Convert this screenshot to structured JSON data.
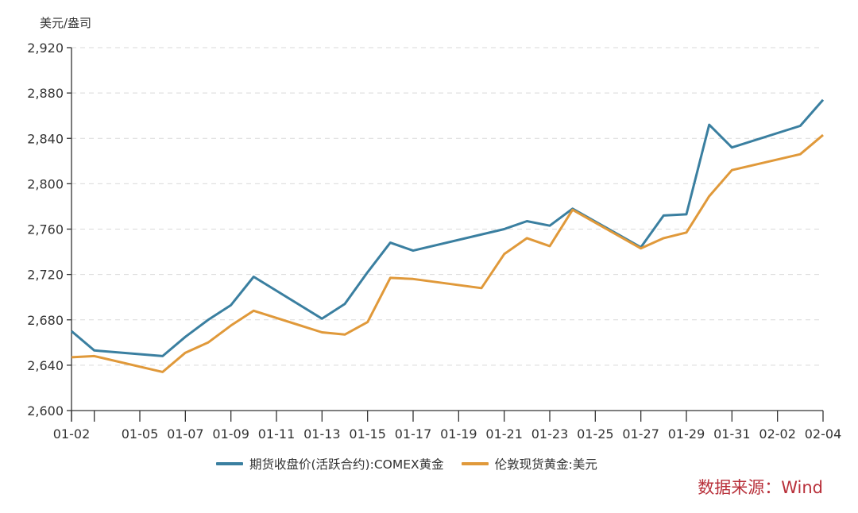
{
  "unit_label": "美元/盎司",
  "source_label": "数据来源：Wind",
  "colors": {
    "series1": "#3a7fa0",
    "series2": "#e0993a",
    "source": "#b8303a",
    "axis": "#333333",
    "grid": "#d9d9d9"
  },
  "legend": [
    {
      "label": "期货收盘价(活跃合约):COMEX黄金",
      "color": "#3a7fa0"
    },
    {
      "label": "伦敦现货黄金:美元",
      "color": "#e0993a"
    }
  ],
  "chart_data": {
    "type": "line",
    "title": "",
    "xlabel": "",
    "ylabel": "美元/盎司",
    "ylim": [
      2600,
      2920
    ],
    "yticks": [
      2600,
      2640,
      2680,
      2720,
      2760,
      2800,
      2840,
      2880,
      2920
    ],
    "ytick_labels": [
      "2,600",
      "2,640",
      "2,680",
      "2,720",
      "2,760",
      "2,800",
      "2,840",
      "2,880",
      "2,920"
    ],
    "xrange": [
      "01-02",
      "02-04"
    ],
    "xticks": [
      "01-02",
      "01-03",
      "01-05",
      "01-07",
      "01-09",
      "01-11",
      "01-13",
      "01-15",
      "01-17",
      "01-19",
      "01-21",
      "01-23",
      "01-25",
      "01-27",
      "01-29",
      "01-31",
      "02-02",
      "02-04"
    ],
    "xtick_labels": [
      "01-02",
      "",
      "01-05",
      "01-07",
      "01-09",
      "01-11",
      "01-13",
      "01-15",
      "01-17",
      "01-19",
      "01-21",
      "01-23",
      "01-25",
      "01-27",
      "01-29",
      "01-31",
      "02-02",
      "02-04"
    ],
    "grid": "horizontal dashed",
    "legend_position": "bottom",
    "series": [
      {
        "name": "期货收盘价(活跃合约):COMEX黄金",
        "color": "#3a7fa0",
        "x": [
          "01-02",
          "01-03",
          "01-06",
          "01-07",
          "01-08",
          "01-09",
          "01-10",
          "01-13",
          "01-14",
          "01-15",
          "01-16",
          "01-17",
          "01-21",
          "01-22",
          "01-23",
          "01-24",
          "01-27",
          "01-28",
          "01-29",
          "01-30",
          "01-31",
          "02-03",
          "02-04"
        ],
        "values": [
          2670,
          2653,
          2648,
          2665,
          2680,
          2693,
          2718,
          2681,
          2694,
          2722,
          2748,
          2741,
          2760,
          2767,
          2763,
          2778,
          2744,
          2772,
          2773,
          2852,
          2832,
          2851,
          2874
        ]
      },
      {
        "name": "伦敦现货黄金:美元",
        "color": "#e0993a",
        "x": [
          "01-02",
          "01-03",
          "01-06",
          "01-07",
          "01-08",
          "01-09",
          "01-10",
          "01-13",
          "01-14",
          "01-15",
          "01-16",
          "01-17",
          "01-20",
          "01-21",
          "01-22",
          "01-23",
          "01-24",
          "01-27",
          "01-28",
          "01-29",
          "01-30",
          "01-31",
          "02-03",
          "02-04"
        ],
        "values": [
          2647,
          2648,
          2634,
          2651,
          2660,
          2675,
          2688,
          2669,
          2667,
          2678,
          2717,
          2716,
          2708,
          2738,
          2752,
          2745,
          2777,
          2743,
          2752,
          2757,
          2789,
          2812,
          2826,
          2843
        ]
      }
    ]
  }
}
